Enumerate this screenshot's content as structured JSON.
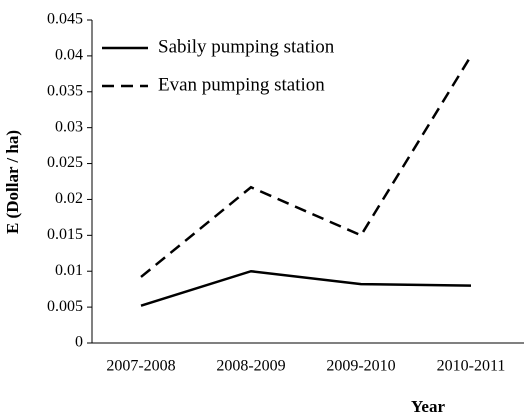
{
  "chart_data": {
    "type": "line",
    "x_label": "Year",
    "y_label": "E (Dollar / ha)",
    "categories": [
      "2007-2008",
      "2008-2009",
      "2009-2010",
      "2010-2011"
    ],
    "series": [
      {
        "name": "Sabily pumping station",
        "color": "#000000",
        "linestyle": "solid",
        "values": [
          0.0052,
          0.01,
          0.0082,
          0.008
        ]
      },
      {
        "name": "Evan pumping station",
        "color": "#000000",
        "linestyle": "dashed",
        "values": [
          0.0092,
          0.0217,
          0.015,
          0.04
        ]
      }
    ],
    "ylim": [
      0,
      0.045
    ],
    "yticks": [
      0,
      0.005,
      0.01,
      0.015,
      0.02,
      0.025,
      0.03,
      0.035,
      0.04,
      0.045
    ],
    "grid": false,
    "legend": "upper left"
  }
}
